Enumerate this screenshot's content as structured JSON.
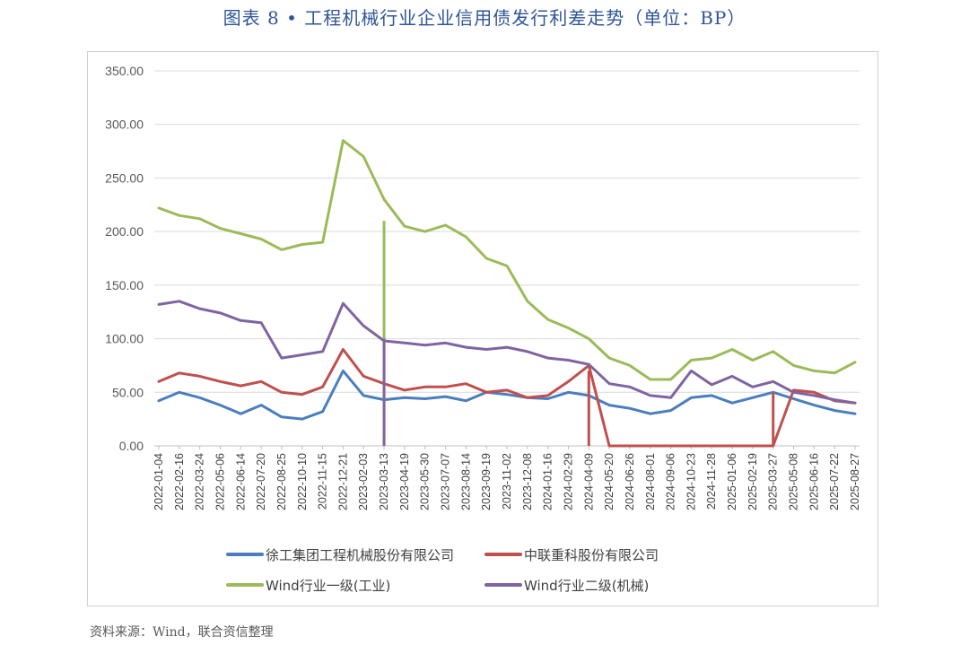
{
  "title": "图表 8 • 工程机械行业企业信用债发行利差走势（单位：BP）",
  "source": "资料来源：Wind，联合资信整理",
  "chart_data": {
    "type": "line",
    "title": "图表 8 • 工程机械行业企业信用债发行利差走势（单位：BP）",
    "xlabel": "",
    "ylabel": "",
    "ylim": [
      0,
      350
    ],
    "yticks": [
      "0.00",
      "50.00",
      "100.00",
      "150.00",
      "200.00",
      "250.00",
      "300.00",
      "350.00"
    ],
    "grid": true,
    "legend_position": "bottom",
    "categories": [
      "2022-01-04",
      "2022-02-16",
      "2022-03-24",
      "2022-05-06",
      "2022-06-14",
      "2022-07-20",
      "2022-08-25",
      "2022-10-10",
      "2022-11-15",
      "2022-12-21",
      "2023-02-03",
      "2023-03-13",
      "2023-04-19",
      "2023-05-30",
      "2023-07-07",
      "2023-08-14",
      "2023-09-19",
      "2023-11-02",
      "2023-12-08",
      "2024-01-16",
      "2024-02-29",
      "2024-04-09",
      "2024-05-20",
      "2024-06-26",
      "2024-08-01",
      "2024-09-06",
      "2024-10-23",
      "2024-11-28",
      "2025-01-06",
      "2025-02-19",
      "2025-03-27",
      "2025-05-08",
      "2025-06-16",
      "2025-07-22",
      "2025-08-27"
    ],
    "series": [
      {
        "name": "徐工集团工程机械股份有限公司",
        "color": "#4a7ebf",
        "values": [
          42,
          50,
          45,
          38,
          30,
          38,
          27,
          25,
          32,
          70,
          47,
          43,
          45,
          44,
          46,
          42,
          50,
          48,
          45,
          44,
          50,
          47,
          38,
          35,
          30,
          33,
          45,
          47,
          40,
          45,
          50,
          44,
          38,
          33,
          30
        ]
      },
      {
        "name": "中联重科股份有限公司",
        "color": "#c0504d",
        "values": [
          60,
          68,
          65,
          60,
          56,
          60,
          50,
          48,
          55,
          90,
          65,
          58,
          52,
          55,
          55,
          58,
          50,
          52,
          45,
          47,
          60,
          75,
          0,
          0,
          0,
          0,
          0,
          0,
          0,
          0,
          0,
          52,
          50,
          42,
          40
        ]
      },
      {
        "name": "Wind行业一级(工业)",
        "color": "#9bbb59",
        "values": [
          222,
          215,
          212,
          203,
          198,
          193,
          183,
          188,
          190,
          285,
          270,
          230,
          205,
          200,
          206,
          195,
          175,
          168,
          135,
          118,
          110,
          100,
          82,
          75,
          62,
          62,
          80,
          82,
          90,
          80,
          88,
          75,
          70,
          68,
          78
        ]
      },
      {
        "name": "Wind行业二级(机械)",
        "color": "#8064a2",
        "values": [
          132,
          135,
          128,
          124,
          117,
          115,
          82,
          85,
          88,
          133,
          112,
          98,
          96,
          94,
          96,
          92,
          90,
          92,
          88,
          82,
          80,
          76,
          58,
          55,
          47,
          45,
          70,
          57,
          65,
          55,
          60,
          50,
          47,
          43,
          40
        ]
      }
    ],
    "spikes": [
      {
        "series": "Wind行业一级(工业)",
        "category": "2023-03-13",
        "values": [
          0,
          210
        ]
      },
      {
        "series": "Wind行业二级(机械)",
        "category": "2023-03-13",
        "values": [
          0,
          100
        ]
      },
      {
        "series": "中联重科股份有限公司",
        "category": "2024-04-09",
        "values": [
          70,
          0
        ]
      },
      {
        "series": "中联重科股份有限公司",
        "category": "2025-03-27",
        "values": [
          0,
          50
        ]
      }
    ]
  }
}
